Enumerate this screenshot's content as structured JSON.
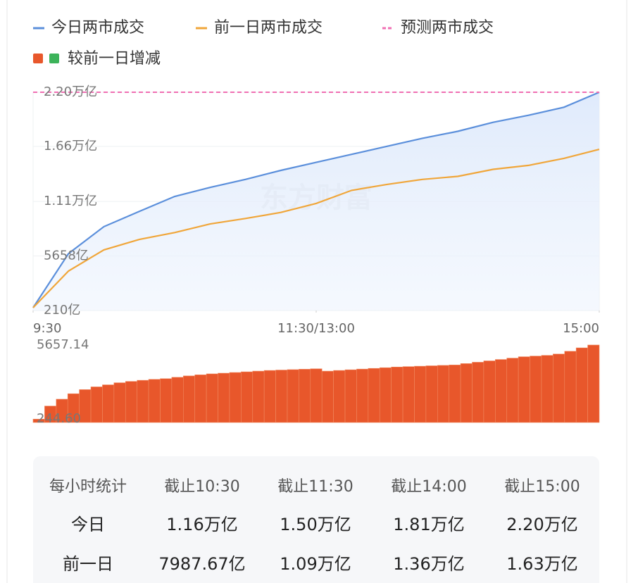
{
  "chart_data": [
    {
      "type": "line",
      "xlim": [
        0,
        240
      ],
      "xticks": [
        {
          "value": 0,
          "label": "9:30"
        },
        {
          "value": 120,
          "label": "11:30/13:00"
        },
        {
          "value": 240,
          "label": "15:00"
        }
      ],
      "ylim": [
        210,
        22000
      ],
      "yticks": [
        {
          "value": 22000,
          "label": "2.20万亿"
        },
        {
          "value": 16600,
          "label": "1.66万亿"
        },
        {
          "value": 11100,
          "label": "1.11万亿"
        },
        {
          "value": 5658,
          "label": "5658亿"
        },
        {
          "value": 210,
          "label": "210亿"
        }
      ],
      "grid": true,
      "watermark": "东方财富",
      "series": [
        {
          "name": "今日两市成交",
          "color": "#5b8fdb",
          "area": true,
          "x": [
            0,
            15,
            30,
            45,
            60,
            75,
            90,
            105,
            120,
            135,
            150,
            165,
            180,
            195,
            210,
            225,
            240
          ],
          "values": [
            490,
            5900,
            8580,
            10100,
            11600,
            12500,
            13300,
            14200,
            15000,
            15800,
            16600,
            17400,
            18100,
            19000,
            19700,
            20500,
            22000
          ]
        },
        {
          "name": "前一日两市成交",
          "color": "#f0a63a",
          "x": [
            0,
            15,
            30,
            45,
            60,
            75,
            90,
            105,
            120,
            135,
            150,
            165,
            180,
            195,
            210,
            225,
            240
          ],
          "values": [
            490,
            4150,
            6260,
            7300,
            7990,
            8850,
            9400,
            10000,
            10900,
            12200,
            12800,
            13300,
            13600,
            14300,
            14700,
            15400,
            16300
          ]
        },
        {
          "name": "预测两市成交",
          "color": "#f06fb3",
          "dashed": true,
          "x": [
            0,
            240
          ],
          "values": [
            22000,
            22000
          ]
        }
      ]
    },
    {
      "type": "bar",
      "xlim": [
        0,
        240
      ],
      "ylim": [
        0,
        5657.14
      ],
      "yticks": [
        5657.14,
        {
          "value": 244.6,
          "label": "244.60"
        }
      ],
      "series": [
        {
          "name": "较前一日增减",
          "color": "#e8572b",
          "negative_color": "#3cb35a",
          "x": [
            0,
            5,
            10,
            15,
            20,
            25,
            30,
            35,
            40,
            45,
            50,
            55,
            60,
            65,
            70,
            75,
            80,
            85,
            90,
            95,
            100,
            105,
            110,
            115,
            120,
            125,
            130,
            135,
            140,
            145,
            150,
            155,
            160,
            165,
            170,
            175,
            180,
            185,
            190,
            195,
            200,
            205,
            210,
            215,
            220,
            225,
            230,
            235,
            240
          ],
          "values": [
            244.6,
            1200,
            1700,
            2100,
            2400,
            2600,
            2750,
            2900,
            3000,
            3080,
            3150,
            3200,
            3300,
            3400,
            3480,
            3550,
            3600,
            3650,
            3700,
            3750,
            3800,
            3830,
            3860,
            3890,
            3920,
            3750,
            3800,
            3850,
            3900,
            3950,
            4000,
            4050,
            4080,
            4110,
            4140,
            4170,
            4200,
            4300,
            4400,
            4500,
            4600,
            4700,
            4800,
            4850,
            4900,
            5000,
            5200,
            5450,
            5657.14
          ]
        }
      ]
    }
  ],
  "table": {
    "header": [
      "每小时统计",
      "截止10:30",
      "截止11:30",
      "截止14:00",
      "截止15:00"
    ],
    "rows": [
      [
        "今日",
        "1.16万亿",
        "1.50万亿",
        "1.81万亿",
        "2.20万亿"
      ],
      [
        "前一日",
        "7987.67亿",
        "1.09万亿",
        "1.36万亿",
        "1.63万亿"
      ]
    ]
  }
}
